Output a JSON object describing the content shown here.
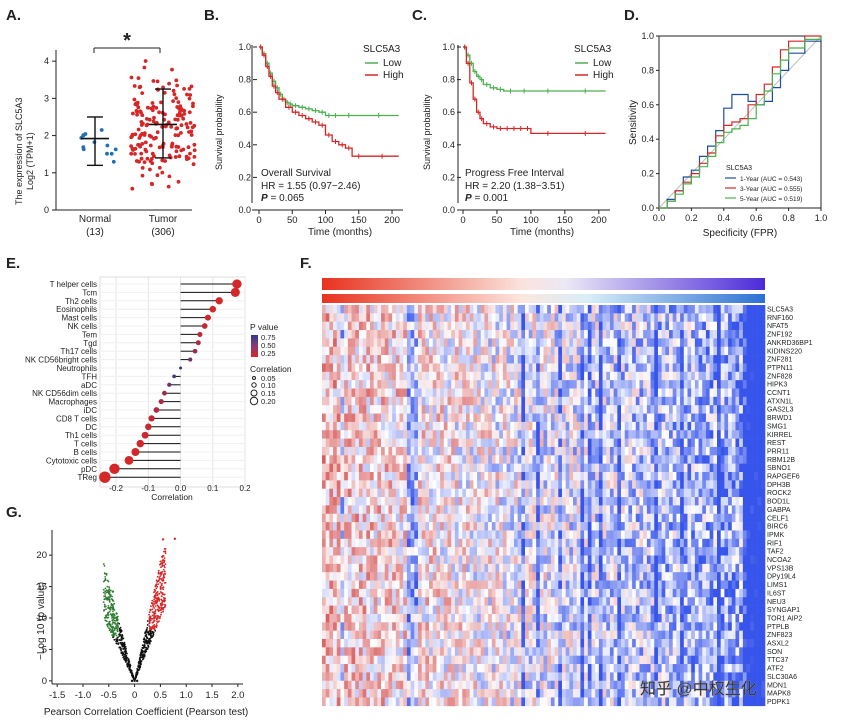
{
  "panels": {
    "A": {
      "letter": "A.",
      "chart_data": {
        "type": "scatter",
        "title": "",
        "ylabel_line1": "The expression of SLC5A3",
        "ylabel_line2": "Log2 (TPM+1)",
        "categories": [
          "Normal",
          "Tumor"
        ],
        "counts": [
          "(13)",
          "(306)"
        ],
        "ylim": [
          0,
          4.3
        ],
        "yticks": [
          0,
          1,
          2,
          3,
          4
        ],
        "series": [
          {
            "name": "Normal",
            "color": "#1f6fb4",
            "mean": 1.92,
            "sd_low": 1.2,
            "sd_high": 2.5
          },
          {
            "name": "Tumor",
            "color": "#d62728",
            "mean": 2.3,
            "sd_low": 1.4,
            "sd_high": 3.25
          }
        ],
        "significance": "*"
      }
    },
    "B": {
      "letter": "B.",
      "chart_data": {
        "type": "line",
        "xlabel": "Time (months)",
        "ylabel": "Survival probability",
        "xlim": [
          0,
          215
        ],
        "ylim": [
          0,
          1
        ],
        "xticks": [
          0,
          50,
          100,
          150,
          200
        ],
        "yticks": [
          "0.0",
          "0.2",
          "0.4",
          "0.6",
          "0.8",
          "1.0"
        ],
        "legend_title": "SLC5A3",
        "series": [
          {
            "name": "Low",
            "color": "#4caf50",
            "x": [
              0,
              5,
              10,
              15,
              20,
              25,
              30,
              35,
              40,
              45,
              50,
              60,
              70,
              80,
              90,
              100,
              110,
              120,
              150,
              210
            ],
            "y": [
              1.0,
              0.96,
              0.9,
              0.84,
              0.79,
              0.75,
              0.71,
              0.68,
              0.66,
              0.65,
              0.64,
              0.63,
              0.62,
              0.61,
              0.6,
              0.58,
              0.58,
              0.58,
              0.58,
              0.58
            ]
          },
          {
            "name": "High",
            "color": "#d62728",
            "x": [
              0,
              5,
              10,
              15,
              20,
              25,
              30,
              40,
              50,
              60,
              70,
              80,
              90,
              100,
              110,
              120,
              130,
              140,
              160,
              210
            ],
            "y": [
              1.0,
              0.95,
              0.88,
              0.82,
              0.76,
              0.72,
              0.68,
              0.63,
              0.6,
              0.58,
              0.56,
              0.54,
              0.52,
              0.46,
              0.42,
              0.4,
              0.38,
              0.33,
              0.33,
              0.33
            ]
          }
        ],
        "annotation_lines": [
          "Overall Survival",
          "HR = 1.55 (0.97−2.46)"
        ],
        "p_label": "P",
        "p_value": " = 0.065"
      }
    },
    "C": {
      "letter": "C.",
      "chart_data": {
        "type": "line",
        "xlabel": "Time (months)",
        "ylabel": "Survival probability",
        "xlim": [
          0,
          215
        ],
        "ylim": [
          0,
          1
        ],
        "xticks": [
          0,
          50,
          100,
          150,
          200
        ],
        "yticks": [
          "0.0",
          "0.2",
          "0.4",
          "0.6",
          "0.8",
          "1.0"
        ],
        "legend_title": "SLC5A3",
        "series": [
          {
            "name": "Low",
            "color": "#4caf50",
            "x": [
              0,
              5,
              10,
              15,
              20,
              25,
              30,
              40,
              50,
              60,
              80,
              100,
              150,
              210
            ],
            "y": [
              1.0,
              0.95,
              0.9,
              0.85,
              0.82,
              0.8,
              0.77,
              0.75,
              0.74,
              0.73,
              0.73,
              0.73,
              0.73,
              0.73
            ]
          },
          {
            "name": "High",
            "color": "#d62728",
            "x": [
              0,
              5,
              10,
              15,
              20,
              25,
              30,
              40,
              50,
              60,
              70,
              80,
              90,
              100,
              150,
              210
            ],
            "y": [
              1.0,
              0.9,
              0.78,
              0.68,
              0.6,
              0.56,
              0.53,
              0.51,
              0.5,
              0.5,
              0.5,
              0.5,
              0.5,
              0.47,
              0.47,
              0.47
            ]
          }
        ],
        "annotation_lines": [
          "Progress Free Interval",
          "HR = 2.20 (1.38−3.51)"
        ],
        "p_label": "P",
        "p_value": " = 0.001"
      }
    },
    "D": {
      "letter": "D.",
      "chart_data": {
        "type": "line",
        "xlabel": "Specificity (FPR)",
        "ylabel": "Sensitivity",
        "xlim": [
          0,
          1
        ],
        "ylim": [
          0,
          1
        ],
        "xticks": [
          "0.0",
          "0.2",
          "0.4",
          "0.6",
          "0.8",
          "1.0"
        ],
        "yticks": [
          "0.0",
          "0.2",
          "0.4",
          "0.6",
          "0.8",
          "1.0"
        ],
        "legend_title": "SLC5A3",
        "series": [
          {
            "name": "1-Year (AUC = 0.543)",
            "color": "#1f4e9c",
            "x": [
              0,
              0.05,
              0.1,
              0.15,
              0.2,
              0.25,
              0.3,
              0.35,
              0.4,
              0.45,
              0.5,
              0.55,
              0.6,
              0.65,
              0.7,
              0.75,
              0.8,
              0.9,
              1.0
            ],
            "y": [
              0,
              0.05,
              0.1,
              0.18,
              0.22,
              0.3,
              0.36,
              0.45,
              0.58,
              0.66,
              0.66,
              0.62,
              0.6,
              0.62,
              0.7,
              0.8,
              0.9,
              0.97,
              1.0
            ]
          },
          {
            "name": "3-Year (AUC = 0.555)",
            "color": "#d62728",
            "x": [
              0,
              0.05,
              0.1,
              0.15,
              0.2,
              0.25,
              0.3,
              0.35,
              0.4,
              0.45,
              0.5,
              0.55,
              0.6,
              0.65,
              0.7,
              0.75,
              0.8,
              0.9,
              1.0
            ],
            "y": [
              0,
              0.04,
              0.1,
              0.15,
              0.2,
              0.26,
              0.32,
              0.42,
              0.48,
              0.5,
              0.52,
              0.6,
              0.66,
              0.72,
              0.82,
              0.92,
              0.97,
              1.0,
              1.0
            ]
          },
          {
            "name": "5-Year (AUC = 0.519)",
            "color": "#4caf50",
            "x": [
              0,
              0.05,
              0.1,
              0.15,
              0.2,
              0.25,
              0.3,
              0.35,
              0.4,
              0.45,
              0.5,
              0.55,
              0.6,
              0.65,
              0.7,
              0.75,
              0.8,
              0.9,
              1.0
            ],
            "y": [
              0,
              0.04,
              0.08,
              0.14,
              0.18,
              0.24,
              0.3,
              0.38,
              0.44,
              0.46,
              0.48,
              0.52,
              0.6,
              0.68,
              0.78,
              0.86,
              0.93,
              0.98,
              1.0
            ]
          }
        ],
        "reference_line_color": "#bdbdbd"
      }
    },
    "E": {
      "letter": "E.",
      "chart_data": {
        "type": "bar",
        "xlabel": "Correlation",
        "xlim": [
          -0.25,
          0.2
        ],
        "xticks": [
          "-0.2",
          "-0.1",
          "0.0",
          "0.1",
          "0.2"
        ],
        "categories": [
          "T helper cells",
          "Tcm",
          "Th2 cells",
          "Eosinophils",
          "Mast cells",
          "NK cells",
          "Tem",
          "Tgd",
          "Th17 cells",
          "NK CD56bright cells",
          "Neutrophils",
          "TFH",
          "aDC",
          "NK CD56dim cells",
          "Macrophages",
          "iDC",
          "CD8 T cells",
          "DC",
          "Th1 cells",
          "T cells",
          "B cells",
          "Cytotoxic cells",
          "pDC",
          "TReg"
        ],
        "values": [
          0.175,
          0.17,
          0.12,
          0.1,
          0.085,
          0.075,
          0.06,
          0.055,
          0.045,
          0.03,
          0.0,
          -0.02,
          -0.035,
          -0.05,
          -0.06,
          -0.075,
          -0.09,
          -0.1,
          -0.11,
          -0.125,
          -0.14,
          -0.16,
          -0.205,
          -0.235
        ],
        "pvalues": [
          0.0,
          0.0,
          0.0,
          0.0,
          0.05,
          0.1,
          0.15,
          0.2,
          0.35,
          0.55,
          0.95,
          0.75,
          0.55,
          0.3,
          0.25,
          0.2,
          0.1,
          0.08,
          0.05,
          0.03,
          0.02,
          0.0,
          0.0,
          0.0
        ],
        "legend_p_title": "P value",
        "legend_p_labels": [
          "0.75",
          "0.50",
          "0.25"
        ],
        "legend_corr_title": "Correlation",
        "legend_corr_labels": [
          "0.05",
          "0.10",
          "0.15",
          "0.20"
        ]
      }
    },
    "F": {
      "letter": "F.",
      "chart_data": {
        "type": "heatmap",
        "rows": [
          "SLC5A3",
          "RNF160",
          "NFAT5",
          "ZNF192",
          "ANKRD36BP1",
          "KIDINS220",
          "ZNF281",
          "PTPN11",
          "ZNF828",
          "HIPK3",
          "CCNT1",
          "ATXN1L",
          "GAS2L3",
          "BRWD1",
          "SMG1",
          "KIRREL",
          "REST",
          "PRR11",
          "RBM12B",
          "SBNO1",
          "RAPGEF6",
          "DPH3B",
          "ROCK2",
          "BOD1L",
          "GABPA",
          "CELF1",
          "BIRC6",
          "IPMK",
          "RIF1",
          "TAF2",
          "NCOA2",
          "VPS13B",
          "DPy19L4",
          "LIMS1",
          "IL6ST",
          "NEU3",
          "SYNGAP1",
          "TOR1 AIP2",
          "PTPLB",
          "ZNF823",
          "ASXL2",
          "SON",
          "TTC37",
          "ATF2",
          "SLC30A6",
          "MDN1",
          "MAPK8",
          "PDPK1"
        ],
        "highlight_color": "#d62728",
        "colors": {
          "high": "#d62728",
          "mid": "#ffffff",
          "low": "#2b2bd6"
        }
      },
      "watermark": "知乎 @中权生化"
    },
    "G": {
      "letter": "G.",
      "chart_data": {
        "type": "scatter",
        "xlabel": "Pearson Correlation Coefficient (Pearson test)",
        "ylabel": "−Log 10 (p value)",
        "xlim": [
          -1.6,
          2.1
        ],
        "ylim": [
          -0.5,
          24
        ],
        "xticks": [
          "-1.5",
          "-1.0",
          "-0.5",
          "0",
          "0.5",
          "1.0",
          "1.5",
          "2.0"
        ],
        "yticks": [
          "0",
          "5",
          "10",
          "15",
          "20"
        ],
        "colors": {
          "negative": "#2e7d32",
          "positive": "#d62728",
          "neutral": "#111111"
        }
      }
    }
  }
}
